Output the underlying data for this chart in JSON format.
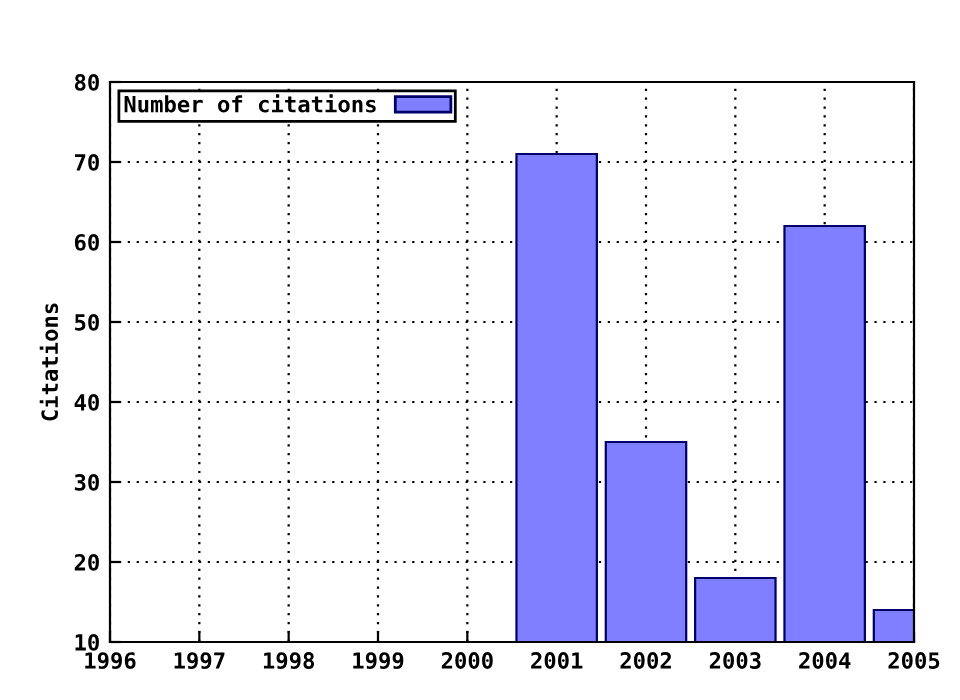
{
  "chart_data": {
    "type": "bar",
    "ylabel": "Citations",
    "x": [
      2001,
      2002,
      2003,
      2004,
      2005
    ],
    "series": [
      {
        "name": "Number of citations",
        "color": "#7f7fff",
        "values": [
          71,
          35,
          18,
          62,
          14
        ]
      }
    ],
    "xlim": [
      1996,
      2005
    ],
    "xticks": [
      1996,
      1997,
      1998,
      1999,
      2000,
      2001,
      2002,
      2003,
      2004,
      2005
    ],
    "ylim": [
      10,
      80
    ],
    "yticks": [
      10,
      20,
      30,
      40,
      50,
      60,
      70,
      80
    ],
    "grid": true,
    "legend": "top left"
  }
}
